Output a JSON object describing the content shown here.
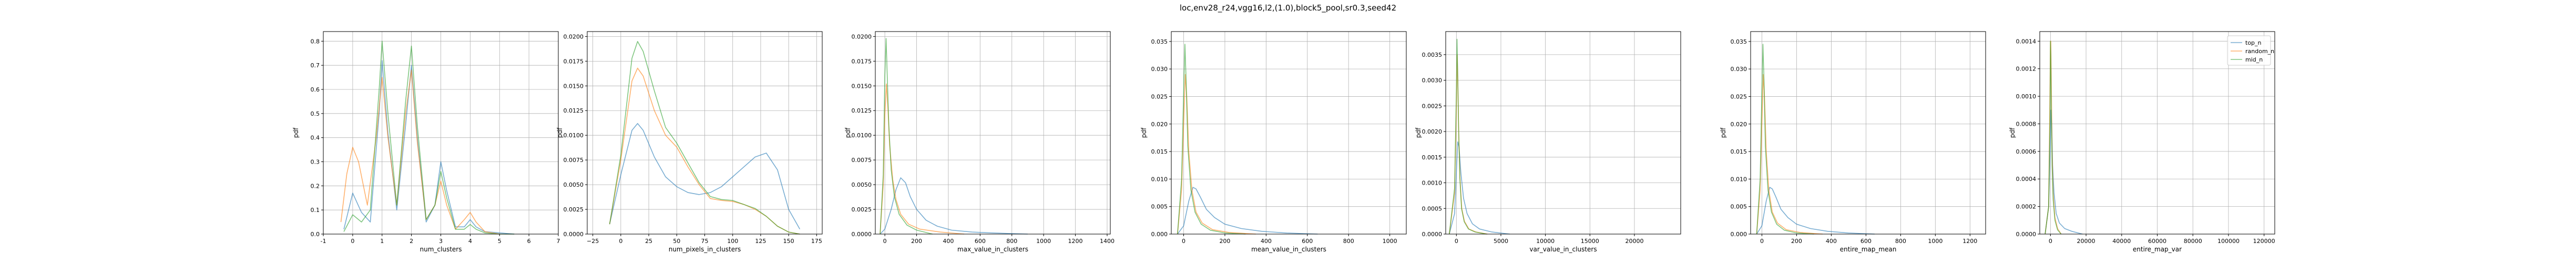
{
  "figure": {
    "title": "loc,env28_r24,vgg16,l2,(1.0),block5_pool,sr0.3,seed42"
  },
  "legend": {
    "location": "upper right of last panel",
    "entries": [
      {
        "name": "top_n",
        "color": "#1f77b4"
      },
      {
        "name": "random_n",
        "color": "#ff7f0e"
      },
      {
        "name": "mid_n",
        "color": "#2ca02c"
      }
    ]
  },
  "chart_data": [
    {
      "type": "line",
      "xlabel": "num_clusters",
      "ylabel": "pdf",
      "grid": true,
      "xlim": [
        -1,
        7
      ],
      "ylim": [
        0,
        0.84
      ],
      "xticks": [
        "-1",
        "0",
        "1",
        "2",
        "3",
        "4",
        "5",
        "6",
        "7"
      ],
      "xtick_values": [
        -1,
        0,
        1,
        2,
        3,
        4,
        5,
        6,
        7
      ],
      "yticks": [
        "0.0",
        "0.1",
        "0.2",
        "0.3",
        "0.4",
        "0.5",
        "0.6",
        "0.7",
        "0.8"
      ],
      "ytick_values": [
        0,
        0.1,
        0.2,
        0.3,
        0.4,
        0.5,
        0.6,
        0.7,
        0.8
      ],
      "series": [
        {
          "name": "top_n",
          "x": [
            -0.3,
            0,
            0.3,
            0.6,
            0.9,
            1,
            1.2,
            1.5,
            1.8,
            2,
            2.2,
            2.5,
            2.8,
            3,
            3.2,
            3.5,
            3.8,
            4,
            4.2,
            4.5,
            5,
            5.5
          ],
          "y": [
            0.02,
            0.17,
            0.09,
            0.05,
            0.5,
            0.72,
            0.42,
            0.1,
            0.45,
            0.7,
            0.4,
            0.05,
            0.12,
            0.3,
            0.18,
            0.03,
            0.03,
            0.06,
            0.03,
            0.01,
            0.005,
            0
          ]
        },
        {
          "name": "random_n",
          "x": [
            -0.4,
            -0.2,
            0,
            0.2,
            0.5,
            0.8,
            1,
            1.2,
            1.5,
            1.8,
            2,
            2.2,
            2.5,
            2.8,
            3,
            3.2,
            3.5,
            3.8,
            4,
            4.2,
            4.5,
            5
          ],
          "y": [
            0.05,
            0.25,
            0.36,
            0.3,
            0.12,
            0.4,
            0.65,
            0.4,
            0.12,
            0.5,
            0.68,
            0.38,
            0.06,
            0.12,
            0.22,
            0.12,
            0.02,
            0.06,
            0.09,
            0.05,
            0.01,
            0
          ]
        },
        {
          "name": "mid_n",
          "x": [
            -0.3,
            0,
            0.3,
            0.6,
            0.9,
            1,
            1.2,
            1.5,
            1.8,
            2,
            2.2,
            2.5,
            2.8,
            3,
            3.2,
            3.5,
            3.8,
            4,
            4.2,
            4.5,
            5,
            5.5
          ],
          "y": [
            0.01,
            0.08,
            0.05,
            0.1,
            0.6,
            0.8,
            0.5,
            0.12,
            0.55,
            0.78,
            0.45,
            0.06,
            0.12,
            0.26,
            0.15,
            0.02,
            0.02,
            0.04,
            0.02,
            0.005,
            0,
            0
          ]
        }
      ]
    },
    {
      "type": "line",
      "xlabel": "num_pixels_in_clusters",
      "ylabel": "pdf",
      "grid": true,
      "xlim": [
        -30,
        180
      ],
      "ylim": [
        0,
        0.0205
      ],
      "xticks": [
        "−25",
        "0",
        "25",
        "50",
        "75",
        "100",
        "125",
        "150",
        "175"
      ],
      "xtick_values": [
        -25,
        0,
        25,
        50,
        75,
        100,
        125,
        150,
        175
      ],
      "yticks": [
        "0.0000",
        "0.0025",
        "0.0050",
        "0.0075",
        "0.0100",
        "0.0125",
        "0.0150",
        "0.0175",
        "0.0200"
      ],
      "ytick_values": [
        0,
        0.0025,
        0.005,
        0.0075,
        0.01,
        0.0125,
        0.015,
        0.0175,
        0.02
      ],
      "series": [
        {
          "name": "top_n",
          "x": [
            -10,
            0,
            10,
            15,
            20,
            30,
            40,
            50,
            60,
            70,
            80,
            90,
            100,
            110,
            120,
            130,
            140,
            150,
            160
          ],
          "y": [
            0.001,
            0.006,
            0.0105,
            0.0112,
            0.0105,
            0.0078,
            0.0058,
            0.0048,
            0.0042,
            0.004,
            0.0042,
            0.0048,
            0.0058,
            0.0068,
            0.0078,
            0.0082,
            0.0065,
            0.0025,
            0.0005
          ]
        },
        {
          "name": "random_n",
          "x": [
            -10,
            0,
            10,
            15,
            20,
            30,
            40,
            50,
            60,
            70,
            80,
            90,
            100,
            110,
            120,
            130,
            140,
            150,
            160
          ],
          "y": [
            0.001,
            0.0075,
            0.0155,
            0.0168,
            0.016,
            0.0125,
            0.01,
            0.0088,
            0.0068,
            0.005,
            0.0036,
            0.0034,
            0.0033,
            0.003,
            0.0025,
            0.0018,
            0.0008,
            0.0002,
            0
          ]
        },
        {
          "name": "mid_n",
          "x": [
            -10,
            0,
            10,
            15,
            20,
            30,
            40,
            50,
            60,
            70,
            80,
            90,
            100,
            110,
            120,
            130,
            140,
            150,
            160
          ],
          "y": [
            0.001,
            0.008,
            0.0178,
            0.0195,
            0.0185,
            0.0145,
            0.0108,
            0.0092,
            0.0072,
            0.0052,
            0.0038,
            0.0035,
            0.0034,
            0.003,
            0.0026,
            0.0018,
            0.0008,
            0.0002,
            0
          ]
        }
      ]
    },
    {
      "type": "line",
      "xlabel": "max_value_in_clusters",
      "ylabel": "pdf",
      "grid": true,
      "xlim": [
        -60,
        1420
      ],
      "ylim": [
        0,
        0.0205
      ],
      "xticks": [
        "0",
        "200",
        "400",
        "600",
        "800",
        "1000",
        "1200",
        "1400"
      ],
      "xtick_values": [
        0,
        200,
        400,
        600,
        800,
        1000,
        1200,
        1400
      ],
      "yticks": [
        "0.0000",
        "0.0025",
        "0.0050",
        "0.0075",
        "0.0100",
        "0.0125",
        "0.0150",
        "0.0175",
        "0.0200"
      ],
      "ytick_values": [
        0,
        0.0025,
        0.005,
        0.0075,
        0.01,
        0.0125,
        0.015,
        0.0175,
        0.02
      ],
      "series": [
        {
          "name": "top_n",
          "x": [
            -30,
            0,
            40,
            70,
            100,
            130,
            160,
            200,
            260,
            330,
            420,
            550,
            700,
            900
          ],
          "y": [
            0,
            0.0005,
            0.0025,
            0.0045,
            0.0057,
            0.0052,
            0.0038,
            0.0025,
            0.0014,
            0.0008,
            0.0004,
            0.0002,
            0.0001,
            0
          ]
        },
        {
          "name": "random_n",
          "x": [
            -30,
            -10,
            0,
            10,
            20,
            30,
            50,
            70,
            100,
            150,
            220,
            350,
            500
          ],
          "y": [
            0,
            0.005,
            0.012,
            0.0152,
            0.0125,
            0.009,
            0.0055,
            0.0035,
            0.002,
            0.001,
            0.0005,
            0.0002,
            0
          ]
        },
        {
          "name": "mid_n",
          "x": [
            -30,
            -10,
            0,
            8,
            15,
            25,
            40,
            60,
            90,
            140,
            200,
            300
          ],
          "y": [
            0,
            0.006,
            0.016,
            0.0198,
            0.016,
            0.011,
            0.0065,
            0.0038,
            0.002,
            0.0009,
            0.0004,
            0
          ]
        }
      ]
    },
    {
      "type": "line",
      "xlabel": "mean_value_in_clusters",
      "ylabel": "pdf",
      "grid": true,
      "xlim": [
        -60,
        1080
      ],
      "ylim": [
        0,
        0.0368
      ],
      "xticks": [
        "0",
        "200",
        "400",
        "600",
        "800",
        "1000"
      ],
      "xtick_values": [
        0,
        200,
        400,
        600,
        800,
        1000
      ],
      "yticks": [
        "0.000",
        "0.005",
        "0.010",
        "0.015",
        "0.020",
        "0.025",
        "0.030",
        "0.035"
      ],
      "ytick_values": [
        0,
        0.005,
        0.01,
        0.015,
        0.02,
        0.025,
        0.03,
        0.035
      ],
      "series": [
        {
          "name": "top_n",
          "x": [
            -30,
            0,
            25,
            45,
            60,
            80,
            110,
            150,
            200,
            280,
            380,
            500,
            650
          ],
          "y": [
            0,
            0.0015,
            0.006,
            0.0085,
            0.0082,
            0.0068,
            0.0045,
            0.003,
            0.0018,
            0.001,
            0.0005,
            0.0002,
            0
          ]
        },
        {
          "name": "random_n",
          "x": [
            -30,
            -10,
            0,
            8,
            15,
            25,
            40,
            60,
            90,
            140,
            220,
            350
          ],
          "y": [
            0,
            0.008,
            0.02,
            0.029,
            0.025,
            0.015,
            0.008,
            0.004,
            0.002,
            0.0008,
            0.0003,
            0
          ]
        },
        {
          "name": "mid_n",
          "x": [
            -30,
            -10,
            0,
            6,
            12,
            20,
            35,
            55,
            85,
            130,
            200,
            300
          ],
          "y": [
            0,
            0.01,
            0.026,
            0.0345,
            0.028,
            0.016,
            0.008,
            0.004,
            0.0018,
            0.0007,
            0.0002,
            0
          ]
        }
      ]
    },
    {
      "type": "line",
      "xlabel": "var_value_in_clusters",
      "ylabel": "pdf",
      "grid": true,
      "xlim": [
        -1200,
        25200
      ],
      "ylim": [
        0,
        0.00395
      ],
      "xticks": [
        "0",
        "5000",
        "10000",
        "15000",
        "20000"
      ],
      "xtick_values": [
        0,
        5000,
        10000,
        15000,
        20000
      ],
      "yticks": [
        "0.0000",
        "0.0005",
        "0.0010",
        "0.0015",
        "0.0020",
        "0.0025",
        "0.0030",
        "0.0035"
      ],
      "ytick_values": [
        0,
        0.0005,
        0.001,
        0.0015,
        0.002,
        0.0025,
        0.003,
        0.0035
      ],
      "series": [
        {
          "name": "top_n",
          "x": [
            -800,
            -200,
            0,
            150,
            300,
            500,
            800,
            1200,
            1800,
            2600,
            4000,
            6000
          ],
          "y": [
            0,
            0.0004,
            0.0012,
            0.0018,
            0.0017,
            0.0012,
            0.0007,
            0.0004,
            0.0002,
            0.0001,
            4e-05,
            0
          ]
        },
        {
          "name": "random_n",
          "x": [
            -800,
            -200,
            0,
            80,
            160,
            260,
            400,
            600,
            900,
            1400,
            2200,
            3500
          ],
          "y": [
            0,
            0.0008,
            0.0025,
            0.0035,
            0.003,
            0.002,
            0.0011,
            0.0005,
            0.00025,
            0.0001,
            4e-05,
            0
          ]
        },
        {
          "name": "mid_n",
          "x": [
            -800,
            -200,
            0,
            70,
            140,
            240,
            380,
            580,
            880,
            1350,
            2100,
            3400
          ],
          "y": [
            0,
            0.0009,
            0.0028,
            0.0038,
            0.0032,
            0.0021,
            0.0011,
            0.0005,
            0.00024,
            0.0001,
            4e-05,
            0
          ]
        }
      ]
    },
    {
      "type": "line",
      "xlabel": "entire_map_mean",
      "ylabel": "pdf",
      "grid": true,
      "xlim": [
        -65,
        1290
      ],
      "ylim": [
        0,
        0.0368
      ],
      "xticks": [
        "0",
        "200",
        "400",
        "600",
        "800",
        "1000",
        "1200"
      ],
      "xtick_values": [
        0,
        200,
        400,
        600,
        800,
        1000,
        1200
      ],
      "yticks": [
        "0.000",
        "0.005",
        "0.010",
        "0.015",
        "0.020",
        "0.025",
        "0.030",
        "0.035"
      ],
      "ytick_values": [
        0,
        0.005,
        0.01,
        0.015,
        0.02,
        0.025,
        0.03,
        0.035
      ],
      "series": [
        {
          "name": "top_n",
          "x": [
            -30,
            0,
            25,
            45,
            60,
            80,
            110,
            150,
            200,
            280,
            380,
            500,
            650
          ],
          "y": [
            0,
            0.0015,
            0.006,
            0.0085,
            0.0082,
            0.0068,
            0.0045,
            0.003,
            0.0018,
            0.001,
            0.0005,
            0.0002,
            0
          ]
        },
        {
          "name": "random_n",
          "x": [
            -30,
            -10,
            0,
            8,
            15,
            25,
            40,
            60,
            90,
            140,
            220,
            350
          ],
          "y": [
            0,
            0.008,
            0.02,
            0.029,
            0.025,
            0.015,
            0.008,
            0.004,
            0.002,
            0.0008,
            0.0003,
            0
          ]
        },
        {
          "name": "mid_n",
          "x": [
            -30,
            -10,
            0,
            6,
            12,
            20,
            35,
            55,
            85,
            130,
            200,
            300
          ],
          "y": [
            0,
            0.01,
            0.026,
            0.0345,
            0.028,
            0.016,
            0.008,
            0.004,
            0.0018,
            0.0007,
            0.0002,
            0
          ]
        }
      ]
    },
    {
      "type": "line",
      "xlabel": "entire_map_var",
      "ylabel": "pdf",
      "grid": true,
      "xlim": [
        -6000,
        126000
      ],
      "ylim": [
        0,
        0.00147
      ],
      "xticks": [
        "0",
        "20000",
        "40000",
        "60000",
        "80000",
        "100000",
        "120000"
      ],
      "xtick_values": [
        0,
        20000,
        40000,
        60000,
        80000,
        100000,
        120000
      ],
      "yticks": [
        "0.0000",
        "0.0002",
        "0.0004",
        "0.0006",
        "0.0008",
        "0.0010",
        "0.0012",
        "0.0014"
      ],
      "ytick_values": [
        0,
        0.0002,
        0.0004,
        0.0006,
        0.0008,
        0.001,
        0.0012,
        0.0014
      ],
      "series": [
        {
          "name": "top_n",
          "x": [
            -3000,
            -1000,
            0,
            300,
            700,
            1200,
            2000,
            3200,
            5000,
            8000,
            12000,
            18000
          ],
          "y": [
            0,
            0.0002,
            0.0007,
            0.0009,
            0.0008,
            0.0005,
            0.0003,
            0.00015,
            8e-05,
            4e-05,
            2e-05,
            0
          ]
        },
        {
          "name": "random_n",
          "x": [
            -3000,
            -1000,
            -300,
            0,
            200,
            500,
            900,
            1500,
            2500,
            4000,
            6000
          ],
          "y": [
            0,
            0.0002,
            0.001,
            0.0014,
            0.0014,
            0.0011,
            0.0006,
            0.0003,
            0.00012,
            4e-05,
            0
          ]
        },
        {
          "name": "mid_n",
          "x": [
            -3000,
            -1000,
            -300,
            0,
            200,
            500,
            900,
            1500,
            2500,
            4000,
            6000
          ],
          "y": [
            0,
            0.0002,
            0.0008,
            0.0014,
            0.0013,
            0.0009,
            0.0005,
            0.00025,
            0.0001,
            3e-05,
            0
          ]
        }
      ]
    }
  ]
}
